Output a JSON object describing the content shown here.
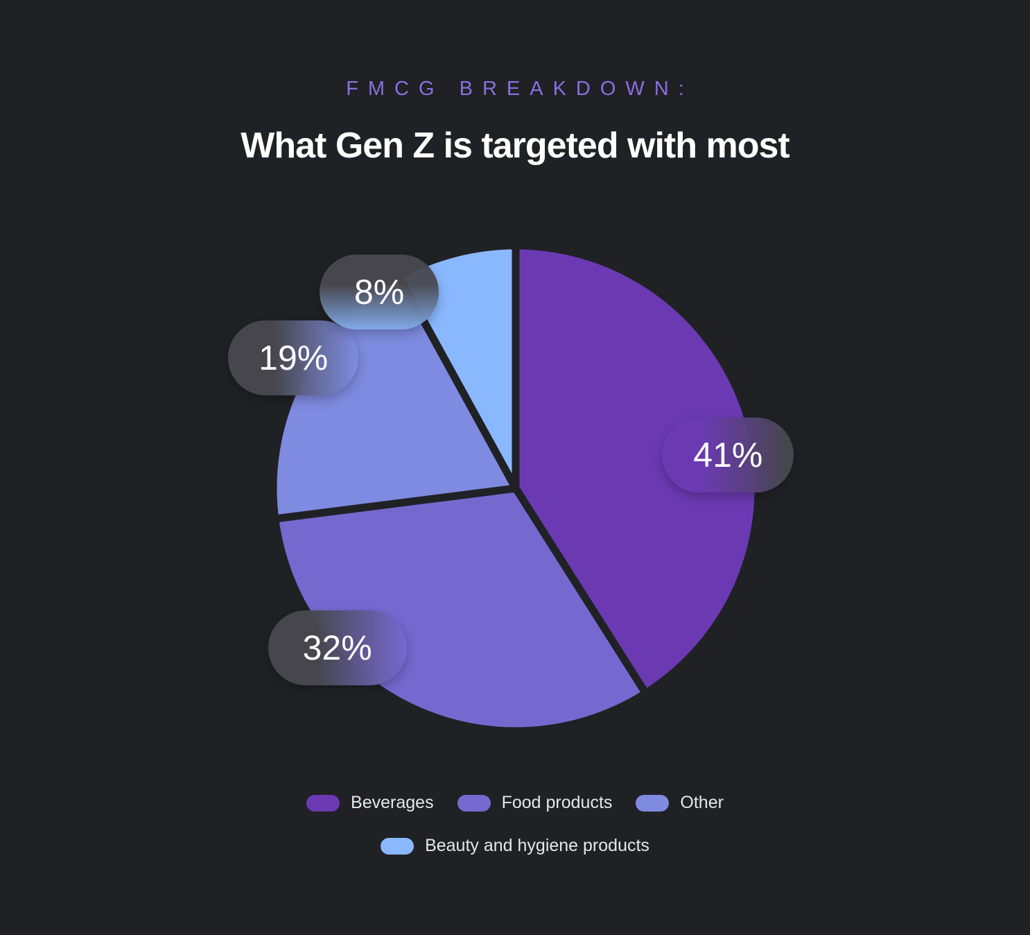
{
  "header": {
    "eyebrow": "FMCG BREAKDOWN:",
    "title": "What Gen Z is targeted with most"
  },
  "colors": {
    "background": "#202125",
    "eyebrow": "#8a6fe0"
  },
  "chart_data": {
    "type": "pie",
    "title": "What Gen Z is targeted with most",
    "unit": "%",
    "slices": [
      {
        "label": "Beverages",
        "value": 41,
        "display": "41%",
        "color": "#6b3ab3"
      },
      {
        "label": "Food products",
        "value": 32,
        "display": "32%",
        "color": "#7668cf"
      },
      {
        "label": "Other",
        "value": 19,
        "display": "19%",
        "color": "#7f8be0"
      },
      {
        "label": "Beauty and hygiene products",
        "value": 8,
        "display": "8%",
        "color": "#8ab8ff"
      }
    ],
    "start": "12 o'clock",
    "direction": "clockwise",
    "legend_position": "bottom"
  },
  "legend": {
    "rows": [
      [
        "Beverages",
        "Food products",
        "Other"
      ],
      [
        "Beauty and hygiene products"
      ]
    ]
  }
}
